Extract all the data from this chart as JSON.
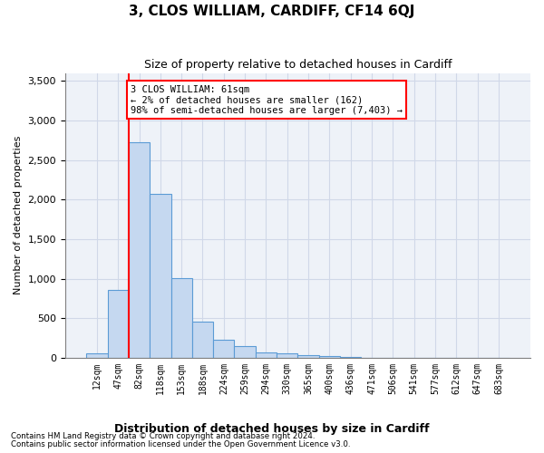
{
  "title": "3, CLOS WILLIAM, CARDIFF, CF14 6QJ",
  "subtitle": "Size of property relative to detached houses in Cardiff",
  "xlabel": "Distribution of detached houses by size in Cardiff",
  "ylabel": "Number of detached properties",
  "bar_values": [
    60,
    860,
    2720,
    2070,
    1010,
    455,
    230,
    145,
    70,
    55,
    30,
    20,
    5,
    0,
    0,
    0,
    0,
    0,
    0,
    0
  ],
  "bar_labels": [
    "12sqm",
    "47sqm",
    "82sqm",
    "118sqm",
    "153sqm",
    "188sqm",
    "224sqm",
    "259sqm",
    "294sqm",
    "330sqm",
    "365sqm",
    "400sqm",
    "436sqm",
    "471sqm",
    "506sqm",
    "541sqm",
    "577sqm",
    "612sqm",
    "647sqm",
    "683sqm"
  ],
  "bar_color": "#c5d8f0",
  "bar_edge_color": "#5b9bd5",
  "ylim": [
    0,
    3600
  ],
  "yticks": [
    0,
    500,
    1000,
    1500,
    2000,
    2500,
    3000,
    3500
  ],
  "annotation_line1": "3 CLOS WILLIAM: 61sqm",
  "annotation_line2": "← 2% of detached houses are smaller (162)",
  "annotation_line3": "98% of semi-detached houses are larger (7,403) →",
  "footnote1": "Contains HM Land Registry data © Crown copyright and database right 2024.",
  "footnote2": "Contains public sector information licensed under the Open Government Licence v3.0.",
  "grid_color": "#d0d8e8",
  "background_color": "#eef2f8",
  "red_line_x": 1.5
}
